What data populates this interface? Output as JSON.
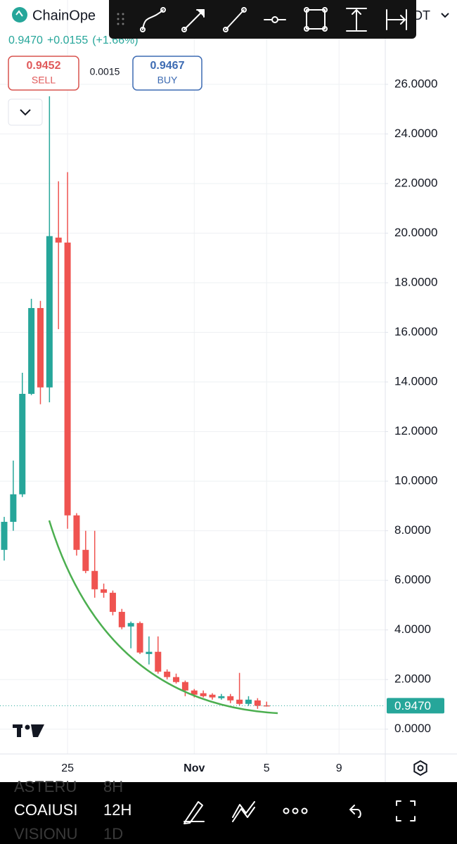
{
  "header": {
    "symbol": "ChainOpe",
    "quote": "DT",
    "price": "0.9470",
    "change": "+0.0155",
    "change_pct": "(+1.66%)",
    "sell_price": "0.9452",
    "sell_label": "SELL",
    "spread": "0.0015",
    "buy_price": "0.9467",
    "buy_label": "BUY"
  },
  "footer": {
    "symbols": [
      "ASTERU",
      "COAIUSI",
      "VISIONU"
    ],
    "intervals": [
      "8H",
      "12H",
      "1D"
    ]
  },
  "chart_data": {
    "type": "candlestick",
    "categories": [
      null,
      null,
      null,
      null,
      null,
      null,
      null,
      "25",
      null,
      null,
      null,
      null,
      null,
      null,
      null,
      null,
      null,
      null,
      null,
      null,
      null,
      "Nov",
      null,
      null,
      null,
      null,
      null,
      null,
      null,
      "5",
      null,
      null,
      null,
      null,
      null,
      null,
      null,
      "9",
      null,
      null,
      null,
      null,
      null
    ],
    "open": [
      7.23,
      8.36,
      9.47,
      13.52,
      16.98,
      13.78,
      19.82,
      19.62,
      8.62,
      7.23,
      6.38,
      5.64,
      5.5,
      4.73,
      4.14,
      4.28,
      3.03,
      3.12,
      2.32,
      2.1,
      1.9,
      1.56,
      1.45,
      1.39,
      1.25,
      1.33,
      1.19,
      1.02,
      1.16,
      0.96,
      null,
      null,
      null,
      null,
      null,
      null,
      null,
      null,
      null,
      null,
      null,
      null,
      null
    ],
    "high": [
      8.56,
      10.83,
      14.37,
      17.35,
      17.27,
      25.52,
      22.09,
      22.46,
      8.71,
      8.0,
      8.0,
      5.87,
      5.59,
      4.85,
      4.34,
      4.34,
      3.74,
      3.74,
      2.41,
      2.24,
      1.96,
      1.62,
      1.56,
      1.45,
      1.42,
      1.42,
      2.27,
      1.33,
      1.25,
      1.11,
      null,
      null,
      null,
      null,
      null,
      null,
      null,
      null,
      null,
      null,
      null,
      null,
      null
    ],
    "low": [
      6.8,
      8.0,
      9.36,
      13.47,
      13.1,
      13.18,
      16.13,
      8.08,
      7.0,
      6.29,
      5.3,
      5.3,
      4.59,
      4.03,
      3.26,
      3.03,
      2.61,
      2.24,
      2.01,
      1.84,
      1.33,
      1.28,
      1.28,
      1.19,
      1.19,
      1.05,
      0.96,
      0.94,
      0.82,
      0.91,
      null,
      null,
      null,
      null,
      null,
      null,
      null,
      null,
      null,
      null,
      null,
      null,
      null
    ],
    "close": [
      8.36,
      9.47,
      13.52,
      16.98,
      13.78,
      19.88,
      19.62,
      8.62,
      7.23,
      6.38,
      5.64,
      5.5,
      4.73,
      4.11,
      4.28,
      3.09,
      3.12,
      2.32,
      2.1,
      1.9,
      1.56,
      1.39,
      1.33,
      1.28,
      1.33,
      1.16,
      1.02,
      1.19,
      0.94,
      0.947,
      null,
      null,
      null,
      null,
      null,
      null,
      null,
      null,
      null,
      null,
      null,
      null,
      null
    ],
    "up_color": "#26a69a",
    "down_color": "#ef5350",
    "ylim": [
      -1,
      29.4
    ],
    "yticks": [
      {
        "value": 0,
        "label": "0.0000"
      },
      {
        "value": 2,
        "label": "2.0000"
      },
      {
        "value": 4,
        "label": "4.0000"
      },
      {
        "value": 6,
        "label": "6.0000"
      },
      {
        "value": 8,
        "label": "8.0000"
      },
      {
        "value": 10,
        "label": "10.0000"
      },
      {
        "value": 12,
        "label": "12.0000"
      },
      {
        "value": 14,
        "label": "14.0000"
      },
      {
        "value": 16,
        "label": "16.0000"
      },
      {
        "value": 18,
        "label": "18.0000"
      },
      {
        "value": 20,
        "label": "20.0000"
      },
      {
        "value": 22,
        "label": "22.0000"
      },
      {
        "value": 24,
        "label": "24.0000"
      },
      {
        "value": 26,
        "label": "26.0000"
      }
    ],
    "last_price": {
      "value": 0.947,
      "label": "0.9470"
    },
    "grid": true
  }
}
